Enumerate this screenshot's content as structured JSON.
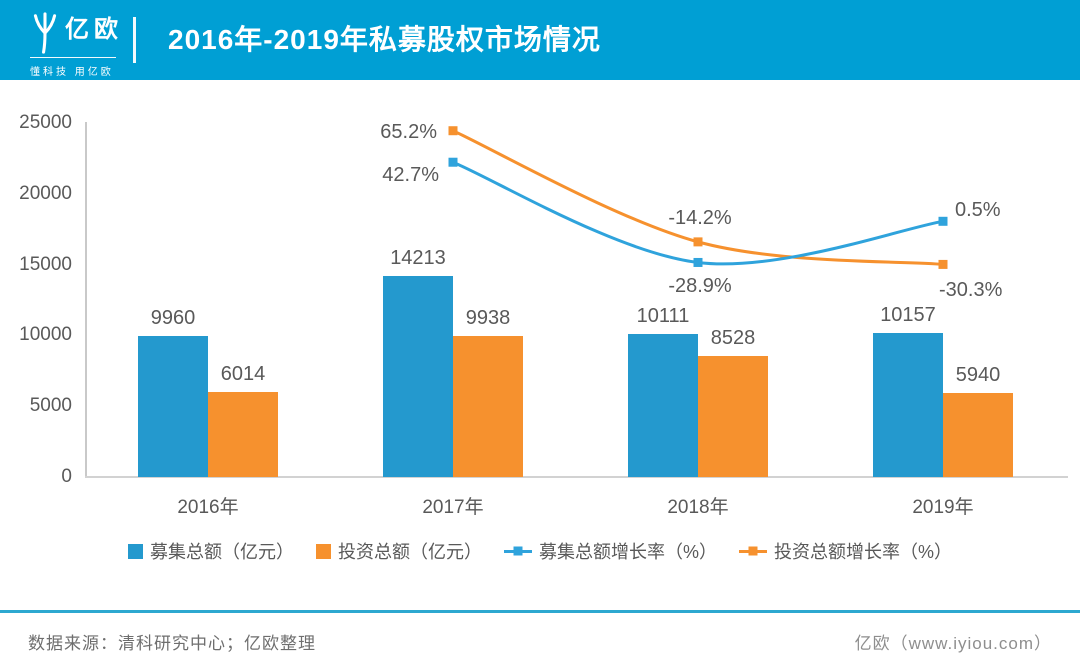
{
  "header": {
    "logo_text": "亿欧",
    "logo_tagline": "懂科技 用亿欧",
    "title": "2016年-2019年私募股权市场情况"
  },
  "colors": {
    "header_bg": "#009FD4",
    "bar_blue": "#2499CE",
    "bar_orange": "#F6912E",
    "line_blue": "#2FA3DC",
    "line_orange": "#F6912E",
    "label_gray": "#595959",
    "axis_gray": "#C9C9C9",
    "footer_line": "#2DA8D0"
  },
  "chart_data": {
    "type": "combo_bar_line",
    "title": "2016年-2019年私募股权市场情况",
    "xlabel": "",
    "ylabel": "",
    "grid": "off",
    "legend_position": "bottom",
    "categories": [
      "2016年",
      "2017年",
      "2018年",
      "2019年"
    ],
    "value_axis": {
      "min": 0,
      "max": 25000,
      "ticks": [
        "0",
        "5000",
        "10000",
        "15000",
        "20000",
        "25000"
      ]
    },
    "bar_series": [
      {
        "name": "募集总额（亿元）",
        "color": "#2499CE",
        "values": [
          9960,
          14213,
          10111,
          10157
        ],
        "labels": [
          "9960",
          "14213",
          "10111",
          "10157"
        ]
      },
      {
        "name": "投资总额（亿元）",
        "color": "#F6912E",
        "values": [
          6014,
          9938,
          8528,
          5940
        ],
        "labels": [
          "6014",
          "9938",
          "8528",
          "5940"
        ]
      }
    ],
    "line_series": [
      {
        "name": "投资总额增长率（%）",
        "color": "#F6912E",
        "points": [
          {
            "category": "2017年",
            "value": 65.2,
            "label": "65.2%",
            "label_placement": "left"
          },
          {
            "category": "2018年",
            "value": -14.2,
            "label": "-14.2%",
            "label_placement": "above"
          },
          {
            "category": "2019年",
            "value": -30.3,
            "label": "-30.3%",
            "label_placement": "right-below"
          }
        ]
      },
      {
        "name": "募集总额增长率（%）",
        "color": "#2FA3DC",
        "points": [
          {
            "category": "2017年",
            "value": 42.7,
            "label": "42.7%",
            "label_placement": "left-below"
          },
          {
            "category": "2018年",
            "value": -28.9,
            "label": "-28.9%",
            "label_placement": "below"
          },
          {
            "category": "2019年",
            "value": 0.5,
            "label": "0.5%",
            "label_placement": "right-above"
          }
        ]
      }
    ],
    "legend": [
      {
        "label": "募集总额（亿元）",
        "type": "bar",
        "color": "#2499CE"
      },
      {
        "label": "投资总额（亿元）",
        "type": "bar",
        "color": "#F6912E"
      },
      {
        "label": "募集总额增长率（%）",
        "type": "line",
        "color": "#2FA3DC"
      },
      {
        "label": "投资总额增长率（%）",
        "type": "line",
        "color": "#F6912E"
      }
    ]
  },
  "footer": {
    "source": "数据来源：清科研究中心；亿欧整理",
    "site": "亿欧（www.iyiou.com）"
  }
}
